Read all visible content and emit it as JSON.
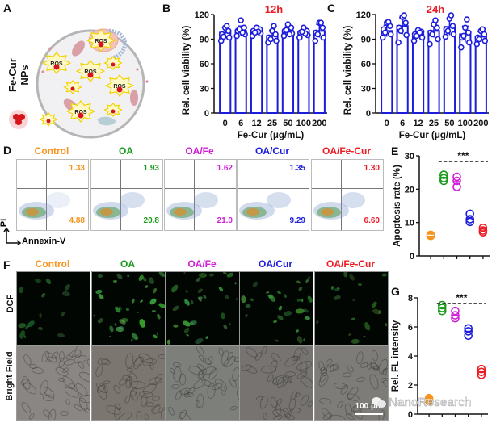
{
  "panels": {
    "A": {
      "letter": "A",
      "label": "Fe-Cur NPs",
      "ros_label": "ROS"
    },
    "B": {
      "letter": "B"
    },
    "C": {
      "letter": "C"
    },
    "D": {
      "letter": "D",
      "y_axis": "PI",
      "x_axis": "Annexin-V"
    },
    "E": {
      "letter": "E"
    },
    "F": {
      "letter": "F",
      "rows": [
        "DCF",
        "Bright Field"
      ],
      "scale_bar": "100 μm"
    },
    "G": {
      "letter": "G"
    }
  },
  "groups": [
    {
      "name": "Control",
      "color": "#f7941d"
    },
    {
      "name": "OA",
      "color": "#1a9a1a"
    },
    {
      "name": "OA/Fe",
      "color": "#d21fd8"
    },
    {
      "name": "OA/Cur",
      "color": "#1c1cdc"
    },
    {
      "name": "OA/Fe-Cur",
      "color": "#ec1c24"
    }
  ],
  "flow_quadrants": [
    {
      "group": "Control",
      "upper_right": "1.33",
      "lower_right": "4.88"
    },
    {
      "group": "OA",
      "upper_right": "1.93",
      "lower_right": "20.8"
    },
    {
      "group": "OA/Fe",
      "upper_right": "1.62",
      "lower_right": "21.0"
    },
    {
      "group": "OA/Cur",
      "upper_right": "1.35",
      "lower_right": "9.29"
    },
    {
      "group": "OA/Fe-Cur",
      "upper_right": "1.30",
      "lower_right": "6.60"
    }
  ],
  "watermark": "NanoResearch",
  "chart_data": [
    {
      "id": "B",
      "type": "bar",
      "title": "12h",
      "xlabel": "Fe-Cur (μg/mL)",
      "ylabel": "Rel. cell viability (%)",
      "categories": [
        "0",
        "6",
        "12",
        "25",
        "50",
        "100",
        "200"
      ],
      "values": [
        98,
        100,
        99,
        94,
        100,
        98,
        100
      ],
      "errors": [
        6,
        6,
        4,
        7,
        5,
        4,
        8
      ],
      "points": [
        [
          88,
          92,
          96,
          100,
          104,
          106,
          93
        ],
        [
          94,
          96,
          100,
          104,
          113,
          98,
          102
        ],
        [
          94,
          97,
          100,
          102,
          104,
          99,
          98
        ],
        [
          86,
          88,
          92,
          96,
          100,
          106,
          90
        ],
        [
          94,
          97,
          100,
          104,
          108,
          96,
          101
        ],
        [
          92,
          95,
          98,
          100,
          104,
          97,
          99
        ],
        [
          88,
          92,
          98,
          104,
          110,
          110,
          96
        ]
      ],
      "ylim": [
        0,
        120
      ],
      "yticks": [
        0,
        30,
        60,
        90,
        120
      ],
      "color": "#1c1cdc",
      "title_color": "#ec1c24"
    },
    {
      "id": "C",
      "type": "bar",
      "title": "24h",
      "xlabel": "Fe-Cur (μg/mL)",
      "ylabel": "Rel. cell viability (%)",
      "categories": [
        "0",
        "6",
        "12",
        "25",
        "50",
        "100",
        "200"
      ],
      "values": [
        100,
        106,
        96,
        100,
        105,
        96,
        93
      ],
      "errors": [
        7,
        10,
        4,
        8,
        10,
        10,
        6
      ],
      "points": [
        [
          92,
          96,
          102,
          106,
          110,
          111,
          98
        ],
        [
          86,
          95,
          104,
          110,
          117,
          119,
          100
        ],
        [
          88,
          92,
          96,
          99,
          101,
          98,
          94
        ],
        [
          84,
          90,
          98,
          104,
          108,
          113,
          96
        ],
        [
          93,
          96,
          102,
          106,
          115,
          119,
          100
        ],
        [
          80,
          86,
          92,
          98,
          104,
          114,
          94
        ],
        [
          84,
          88,
          92,
          96,
          100,
          102,
          90
        ]
      ],
      "ylim": [
        0,
        120
      ],
      "yticks": [
        0,
        30,
        60,
        90,
        120
      ],
      "color": "#1c1cdc",
      "title_color": "#ec1c24"
    },
    {
      "id": "E",
      "type": "scatter",
      "ylabel": "Apoptosis rate (%)",
      "categories": [
        "Control",
        "OA",
        "OA/Fe",
        "OA/Cur",
        "OA/Fe-Cur"
      ],
      "values": [
        [
          6.2,
          6.3,
          6.0
        ],
        [
          22.5,
          23.3,
          24.3
        ],
        [
          20.7,
          22.5,
          23.7
        ],
        [
          10.2,
          11.0,
          12.6
        ],
        [
          7.1,
          7.6,
          8.4
        ]
      ],
      "means": [
        6.2,
        23.3,
        22.3,
        11.3,
        7.7
      ],
      "ylim": [
        0,
        30
      ],
      "yticks": [
        0,
        10,
        20,
        30
      ],
      "annotation": "***"
    },
    {
      "id": "G",
      "type": "scatter",
      "ylabel": "Rel. FL intensity",
      "categories": [
        "Control",
        "OA",
        "OA/Fe",
        "OA/Cur",
        "OA/Fe-Cur"
      ],
      "values": [
        [
          0.9,
          1.0,
          1.1
        ],
        [
          7.1,
          7.3,
          7.5
        ],
        [
          6.6,
          6.8,
          7.1
        ],
        [
          5.4,
          5.7,
          5.9
        ],
        [
          2.7,
          2.9,
          3.1
        ]
      ],
      "means": [
        1.0,
        7.3,
        6.8,
        5.7,
        2.9
      ],
      "ylim": [
        0,
        8
      ],
      "yticks": [
        0,
        2,
        4,
        6,
        8
      ],
      "annotation": "***"
    }
  ]
}
